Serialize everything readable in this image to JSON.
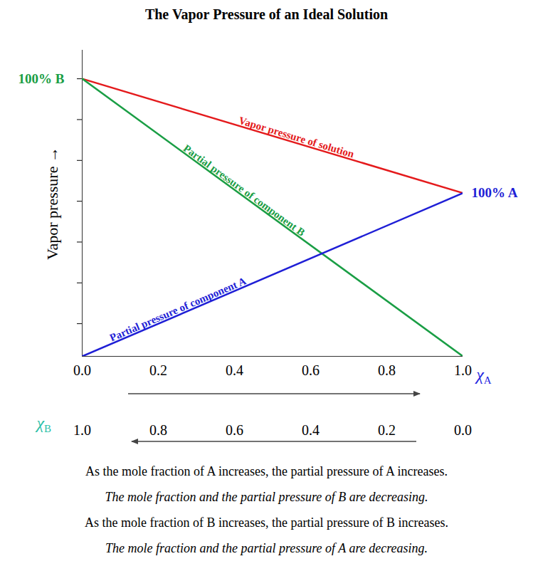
{
  "chart_data": {
    "type": "line",
    "title": "The Vapor Pressure of an Ideal Solution",
    "xlabel": "χA",
    "ylabel": "Vapor pressure",
    "x": [
      0,
      1
    ],
    "series": [
      {
        "name": "Vapor pressure of solution",
        "color": "#e41a1c",
        "values": [
          6.8,
          4.0
        ]
      },
      {
        "name": "Partial pressure of component B",
        "color": "#1a9e45",
        "values": [
          6.8,
          0
        ]
      },
      {
        "name": "Partial pressure of component A",
        "color": "#1f1fd6",
        "values": [
          0,
          4.0
        ]
      }
    ],
    "xlim": [
      0,
      1
    ],
    "xticks": [
      {
        "value": 0,
        "label": "0.0"
      },
      0.2,
      0.4,
      0.6,
      0.8,
      {
        "value": 1,
        "label": "1.0"
      }
    ],
    "ylim": [
      0,
      7.5
    ],
    "yticks": [
      0.8,
      1.8,
      2.8,
      3.8,
      4.8,
      5.8,
      6.8
    ],
    "tick_labels": "x",
    "grid": false,
    "annotations": [
      {
        "text": "100% B",
        "x": 0,
        "y": 6.8
      },
      {
        "text": "100% A",
        "x": 1,
        "y": 4.0
      }
    ],
    "secondary_x_axis": {
      "label": "χB",
      "lim": [
        1,
        0
      ],
      "ticks": [
        {
          "value": 1,
          "label": "1.0"
        },
        0.8,
        0.6,
        0.4,
        0.2,
        {
          "value": 0,
          "label": "0.0"
        }
      ]
    },
    "caption": [
      "As the mole fraction of A increases, the partial pressure of A increases.",
      "The mole fraction and the partial pressure of B are decreasing.",
      "As the mole fraction of B increases, the partial pressure of B increases.",
      "The mole fraction and the partial pressure of A are decreasing."
    ]
  }
}
